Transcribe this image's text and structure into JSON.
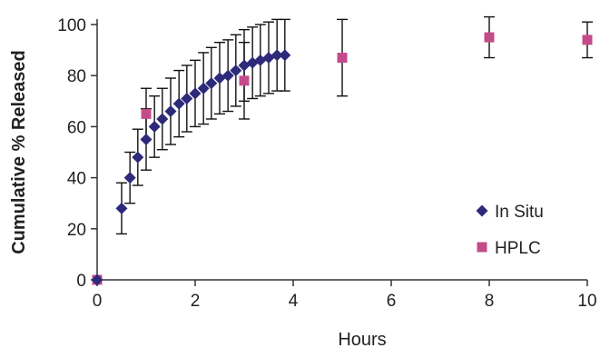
{
  "chart_data": {
    "type": "scatter",
    "xlabel": "Hours",
    "ylabel": "Cumulative % Released",
    "xlim": [
      0,
      10
    ],
    "ylim": [
      0,
      100
    ],
    "xticks": [
      0,
      2,
      4,
      6,
      8,
      10
    ],
    "yticks": [
      0,
      20,
      40,
      60,
      80,
      100
    ],
    "grid": false,
    "legend_position": "bottom-right",
    "series": [
      {
        "name": "In Situ",
        "marker": "diamond",
        "color": "#2e2a7a",
        "points": [
          {
            "x": 0,
            "y": 0,
            "err": 0
          },
          {
            "x": 0.5,
            "y": 28,
            "err": 10
          },
          {
            "x": 0.67,
            "y": 40,
            "err": 10
          },
          {
            "x": 0.83,
            "y": 48,
            "err": 11
          },
          {
            "x": 1.0,
            "y": 55,
            "err": 12
          },
          {
            "x": 1.17,
            "y": 60,
            "err": 12
          },
          {
            "x": 1.33,
            "y": 63,
            "err": 12
          },
          {
            "x": 1.5,
            "y": 66,
            "err": 13
          },
          {
            "x": 1.67,
            "y": 69,
            "err": 13
          },
          {
            "x": 1.83,
            "y": 71,
            "err": 13
          },
          {
            "x": 2.0,
            "y": 73,
            "err": 13
          },
          {
            "x": 2.17,
            "y": 75,
            "err": 14
          },
          {
            "x": 2.33,
            "y": 77,
            "err": 14
          },
          {
            "x": 2.5,
            "y": 79,
            "err": 14
          },
          {
            "x": 2.67,
            "y": 80,
            "err": 14
          },
          {
            "x": 2.83,
            "y": 82,
            "err": 14
          },
          {
            "x": 3.0,
            "y": 84,
            "err": 14
          },
          {
            "x": 3.17,
            "y": 85,
            "err": 14
          },
          {
            "x": 3.33,
            "y": 86,
            "err": 14
          },
          {
            "x": 3.5,
            "y": 87,
            "err": 14
          },
          {
            "x": 3.67,
            "y": 88,
            "err": 14
          },
          {
            "x": 3.83,
            "y": 88,
            "err": 14
          }
        ]
      },
      {
        "name": "HPLC",
        "marker": "square",
        "color": "#c44b8a",
        "points": [
          {
            "x": 0,
            "y": 0,
            "err": 0
          },
          {
            "x": 1,
            "y": 65,
            "err": 10
          },
          {
            "x": 3,
            "y": 78,
            "err": 15
          },
          {
            "x": 5,
            "y": 87,
            "err": 15
          },
          {
            "x": 8,
            "y": 95,
            "err": 8
          },
          {
            "x": 10,
            "y": 94,
            "err": 7
          }
        ]
      }
    ]
  }
}
